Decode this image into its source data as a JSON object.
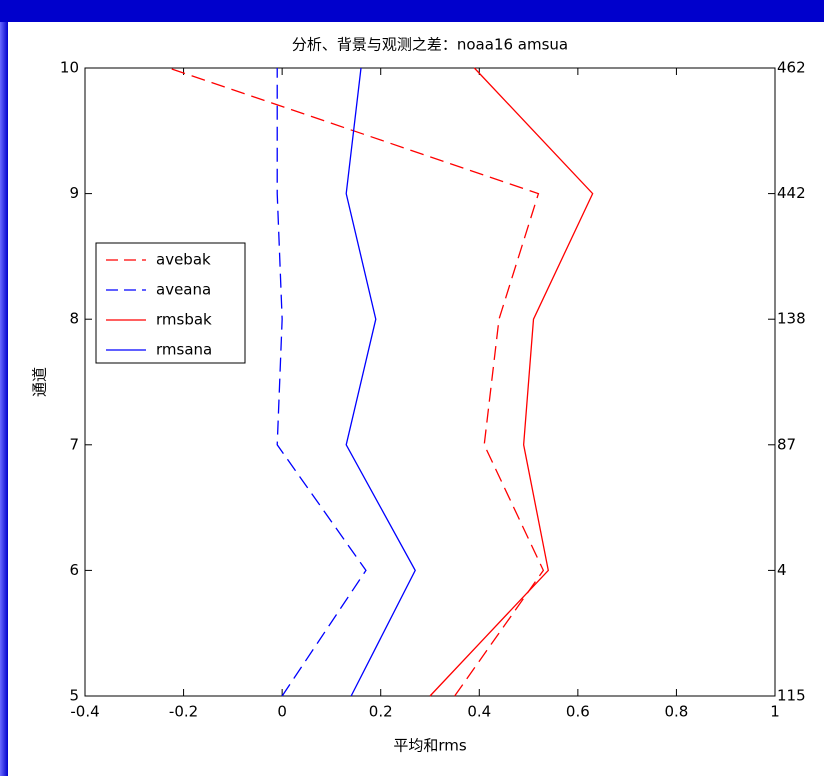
{
  "chart_data": {
    "type": "line",
    "title": "分析、背景与观测之差：noaa16 amsua",
    "x_label": "平均和rms",
    "y_label": "通道",
    "channels": [
      5,
      6,
      7,
      8,
      9,
      10
    ],
    "series": [
      {
        "name": "avebak",
        "color": "#ff0000",
        "dash": true,
        "values": [
          0.35,
          0.53,
          0.41,
          0.44,
          0.52,
          -0.23
        ]
      },
      {
        "name": "aveana",
        "color": "#0000ff",
        "dash": true,
        "values": [
          0.0,
          0.17,
          -0.01,
          0.0,
          -0.01,
          -0.01
        ]
      },
      {
        "name": "rmsbak",
        "color": "#ff0000",
        "dash": false,
        "values": [
          0.3,
          0.54,
          0.49,
          0.51,
          0.63,
          0.39
        ]
      },
      {
        "name": "rmsana",
        "color": "#0000ff",
        "dash": false,
        "values": [
          0.14,
          0.27,
          0.13,
          0.19,
          0.13,
          0.16
        ]
      }
    ],
    "xlim": [
      -0.4,
      1
    ],
    "xticks": [
      -0.4,
      -0.2,
      0,
      0.2,
      0.4,
      0.6,
      0.8,
      1
    ],
    "ylim": [
      5,
      10
    ],
    "yticks": [
      5,
      6,
      7,
      8,
      9,
      10
    ],
    "y2_labels": [
      "115",
      "4",
      "87",
      "138",
      "442",
      "462"
    ],
    "legend": "left"
  }
}
